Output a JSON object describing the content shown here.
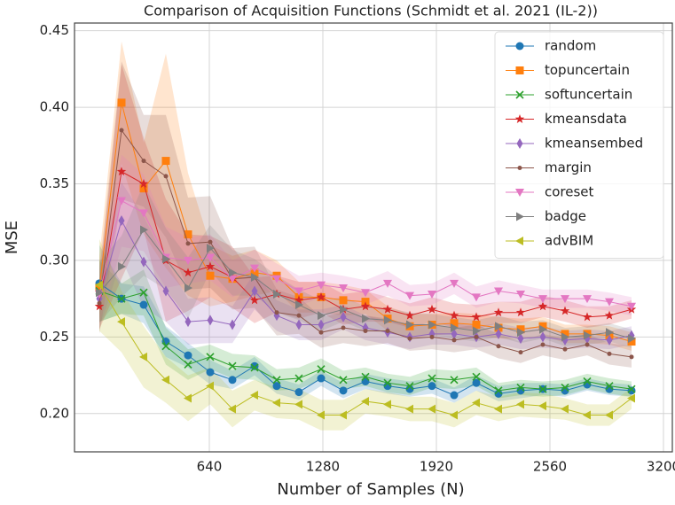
{
  "chart_data": {
    "type": "line",
    "title": "Comparison of Acquisition Functions (Schmidt et al. 2021 (IL-2))",
    "xlabel": "Number of Samples (N)",
    "ylabel": "MSE",
    "x": [
      20,
      145,
      270,
      395,
      520,
      645,
      770,
      895,
      1020,
      1145,
      1270,
      1395,
      1520,
      1645,
      1770,
      1895,
      2020,
      2145,
      2270,
      2395,
      2520,
      2645,
      2770,
      2895,
      3020
    ],
    "xlim": [
      -120,
      3250
    ],
    "xticks": [
      640,
      1280,
      1920,
      2560,
      3200
    ],
    "ylim": [
      0.175,
      0.455
    ],
    "yticks": [
      {
        "value": 0.2,
        "label": "0.20"
      },
      0.25,
      {
        "value": 0.3,
        "label": "0.30"
      },
      0.35,
      {
        "value": 0.4,
        "label": "0.40"
      },
      0.45
    ],
    "grid": true,
    "legend": "upper right",
    "series": [
      {
        "name": "random",
        "color": "#1f77b4",
        "marker": "circle",
        "values": [
          0.285,
          0.275,
          0.271,
          0.247,
          0.238,
          0.227,
          0.222,
          0.231,
          0.218,
          0.214,
          0.223,
          0.215,
          0.221,
          0.218,
          0.216,
          0.218,
          0.212,
          0.22,
          0.213,
          0.215,
          0.216,
          0.215,
          0.219,
          0.216,
          0.215
        ],
        "err": [
          0.025,
          0.01,
          0.012,
          0.01,
          0.008,
          0.008,
          0.006,
          0.006,
          0.005,
          0.005,
          0.005,
          0.005,
          0.005,
          0.005,
          0.005,
          0.005,
          0.005,
          0.005,
          0.005,
          0.005,
          0.004,
          0.004,
          0.004,
          0.004,
          0.004
        ]
      },
      {
        "name": "topuncertain",
        "color": "#ff7f0e",
        "marker": "square",
        "values": [
          0.282,
          0.403,
          0.347,
          0.365,
          0.317,
          0.29,
          0.288,
          0.292,
          0.29,
          0.276,
          0.276,
          0.274,
          0.273,
          0.262,
          0.257,
          0.258,
          0.259,
          0.258,
          0.256,
          0.255,
          0.257,
          0.252,
          0.252,
          0.251,
          0.247
        ],
        "err": [
          0.02,
          0.04,
          0.03,
          0.07,
          0.04,
          0.02,
          0.015,
          0.015,
          0.01,
          0.01,
          0.01,
          0.01,
          0.008,
          0.008,
          0.008,
          0.007,
          0.007,
          0.007,
          0.007,
          0.007,
          0.006,
          0.006,
          0.006,
          0.006,
          0.006
        ]
      },
      {
        "name": "softuncertain",
        "color": "#2ca02c",
        "marker": "x",
        "values": [
          0.28,
          0.275,
          0.279,
          0.244,
          0.232,
          0.237,
          0.231,
          0.23,
          0.222,
          0.223,
          0.229,
          0.222,
          0.224,
          0.22,
          0.218,
          0.223,
          0.222,
          0.224,
          0.215,
          0.217,
          0.216,
          0.217,
          0.221,
          0.218,
          0.216
        ],
        "err": [
          0.02,
          0.01,
          0.015,
          0.012,
          0.01,
          0.008,
          0.008,
          0.008,
          0.007,
          0.007,
          0.007,
          0.006,
          0.006,
          0.006,
          0.006,
          0.006,
          0.006,
          0.006,
          0.005,
          0.005,
          0.005,
          0.005,
          0.005,
          0.005,
          0.005
        ]
      },
      {
        "name": "kmeansdata",
        "color": "#d62728",
        "marker": "star",
        "values": [
          0.27,
          0.358,
          0.35,
          0.3,
          0.292,
          0.296,
          0.289,
          0.274,
          0.278,
          0.274,
          0.276,
          0.268,
          0.27,
          0.268,
          0.264,
          0.268,
          0.264,
          0.263,
          0.266,
          0.266,
          0.27,
          0.267,
          0.263,
          0.264,
          0.268
        ],
        "err": [
          0.015,
          0.07,
          0.03,
          0.04,
          0.025,
          0.02,
          0.02,
          0.015,
          0.012,
          0.012,
          0.01,
          0.01,
          0.01,
          0.008,
          0.008,
          0.008,
          0.008,
          0.008,
          0.007,
          0.007,
          0.007,
          0.007,
          0.007,
          0.006,
          0.006
        ]
      },
      {
        "name": "kmeansembed",
        "color": "#9467bd",
        "marker": "diamond",
        "values": [
          0.275,
          0.326,
          0.299,
          0.28,
          0.26,
          0.261,
          0.258,
          0.28,
          0.264,
          0.258,
          0.258,
          0.263,
          0.256,
          0.253,
          0.25,
          0.252,
          0.252,
          0.25,
          0.252,
          0.249,
          0.25,
          0.248,
          0.249,
          0.248,
          0.251
        ],
        "err": [
          0.02,
          0.025,
          0.03,
          0.02,
          0.015,
          0.015,
          0.012,
          0.012,
          0.01,
          0.01,
          0.01,
          0.008,
          0.008,
          0.008,
          0.008,
          0.007,
          0.007,
          0.007,
          0.007,
          0.007,
          0.007,
          0.006,
          0.006,
          0.006,
          0.006
        ]
      },
      {
        "name": "margin",
        "color": "#8c564b",
        "marker": "dot",
        "values": [
          0.272,
          0.385,
          0.365,
          0.355,
          0.311,
          0.312,
          0.288,
          0.289,
          0.266,
          0.264,
          0.253,
          0.256,
          0.254,
          0.254,
          0.249,
          0.25,
          0.248,
          0.25,
          0.244,
          0.24,
          0.245,
          0.242,
          0.245,
          0.239,
          0.237
        ],
        "err": [
          0.02,
          0.045,
          0.03,
          0.04,
          0.03,
          0.03,
          0.02,
          0.02,
          0.015,
          0.012,
          0.01,
          0.01,
          0.01,
          0.008,
          0.008,
          0.008,
          0.008,
          0.008,
          0.008,
          0.007,
          0.007,
          0.007,
          0.007,
          0.007,
          0.007
        ]
      },
      {
        "name": "coreset",
        "color": "#e377c2",
        "marker": "tri-down",
        "values": [
          0.278,
          0.339,
          0.331,
          0.302,
          0.3,
          0.302,
          0.288,
          0.295,
          0.288,
          0.28,
          0.284,
          0.282,
          0.279,
          0.285,
          0.277,
          0.278,
          0.285,
          0.276,
          0.28,
          0.278,
          0.275,
          0.275,
          0.275,
          0.273,
          0.27
        ],
        "err": [
          0.02,
          0.03,
          0.025,
          0.02,
          0.015,
          0.015,
          0.012,
          0.012,
          0.01,
          0.01,
          0.008,
          0.008,
          0.008,
          0.008,
          0.007,
          0.007,
          0.007,
          0.007,
          0.007,
          0.006,
          0.006,
          0.006,
          0.006,
          0.006,
          0.006
        ]
      },
      {
        "name": "badge",
        "color": "#7f7f7f",
        "marker": "tri-right",
        "values": [
          0.279,
          0.296,
          0.32,
          0.301,
          0.282,
          0.308,
          0.292,
          0.289,
          0.278,
          0.271,
          0.264,
          0.268,
          0.262,
          0.261,
          0.258,
          0.258,
          0.256,
          0.254,
          0.257,
          0.253,
          0.255,
          0.25,
          0.251,
          0.253,
          0.249
        ],
        "err": [
          0.02,
          0.02,
          0.03,
          0.02,
          0.02,
          0.015,
          0.015,
          0.012,
          0.012,
          0.01,
          0.01,
          0.008,
          0.008,
          0.008,
          0.008,
          0.007,
          0.007,
          0.007,
          0.007,
          0.007,
          0.006,
          0.006,
          0.006,
          0.006,
          0.006
        ]
      },
      {
        "name": "advBIM",
        "color": "#bcbd22",
        "marker": "tri-left",
        "values": [
          0.284,
          0.26,
          0.237,
          0.222,
          0.21,
          0.218,
          0.203,
          0.212,
          0.207,
          0.206,
          0.199,
          0.199,
          0.208,
          0.206,
          0.203,
          0.203,
          0.199,
          0.207,
          0.203,
          0.206,
          0.205,
          0.203,
          0.199,
          0.199,
          0.21
        ],
        "err": [
          0.03,
          0.02,
          0.02,
          0.015,
          0.015,
          0.012,
          0.012,
          0.01,
          0.01,
          0.01,
          0.01,
          0.01,
          0.008,
          0.008,
          0.008,
          0.008,
          0.008,
          0.008,
          0.008,
          0.008,
          0.008,
          0.007,
          0.007,
          0.007,
          0.007
        ]
      }
    ]
  }
}
